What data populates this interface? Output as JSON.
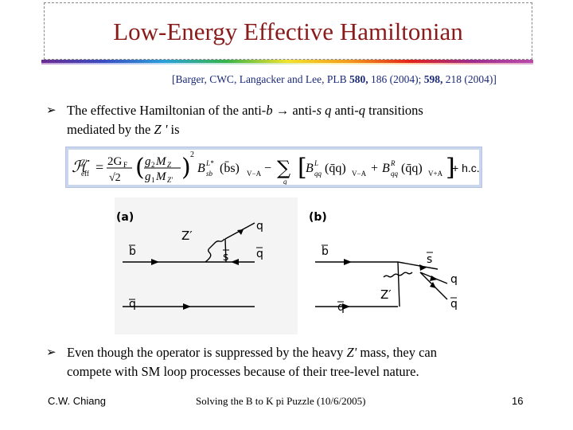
{
  "title": "Low-Energy Effective Hamiltonian",
  "reference": {
    "prefix": "[Barger, CWC, Langacker and Lee, PLB ",
    "vol1": "580,",
    "mid1": " 186 (2004); ",
    "vol2": "598,",
    "mid2": " 218 (2004)]"
  },
  "bullet1": {
    "line1_a": "The effective Hamiltonian of the anti-",
    "line1_b": "b",
    "line1_c": " → anti-",
    "line1_d": "s q",
    "line1_e": " anti-",
    "line1_f": "q",
    "line1_g": " transitions",
    "line2_a": "mediated by the ",
    "line2_b": "Z '",
    "line2_c": " is"
  },
  "equation": {
    "lhs_sup": "Z′",
    "lhs_sub": "eff",
    "frac1_num": "2G",
    "frac1_num_sub": "F",
    "frac1_den": "√2",
    "frac2_num": "g",
    "frac2_num_sub": "2",
    "frac2_num_b": "M",
    "frac2_num_b_sub": "Z",
    "frac2_den": "g",
    "frac2_den_sub": "1",
    "frac2_den_b": "M",
    "frac2_den_b_sub": "Z′",
    "power": "2",
    "b_sup": "L*",
    "b_sub": "sb",
    "bs_term": "(b̄s)",
    "bs_sub": "V−A",
    "sum_sub": "q",
    "bl_sup": "L",
    "bl_sub": "qq",
    "qq1": "(q̄q)",
    "qq1_sub": "V−A",
    "plus": "+",
    "br_sup": "R",
    "br_sub": "qq",
    "qq2": "(q̄q)",
    "qq2_sub": "V+A",
    "hc": "+ h.c."
  },
  "diagram_a": {
    "label": "(a)",
    "zprime": "Z′",
    "b": "b",
    "s": "s",
    "q_top": "q",
    "q_right": "q",
    "q_bottom": "q"
  },
  "diagram_b": {
    "label": "(b)",
    "zprime": "Z′",
    "b": "b",
    "s": "s",
    "q_top": "q",
    "q_right": "q",
    "q_bottom": "q"
  },
  "bullet2": {
    "line1_a": "Even though the operator is suppressed by the heavy ",
    "line1_b": "Z'",
    "line1_c": " mass, they can",
    "line2": "compete with SM loop processes because of their tree-level nature."
  },
  "footer": {
    "author": "C.W. Chiang",
    "talk": "Solving the B to K pi Puzzle (10/6/2005)",
    "page": "16"
  }
}
